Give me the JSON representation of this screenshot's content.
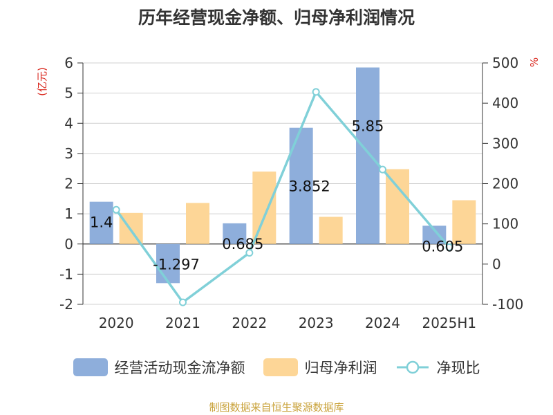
{
  "title": "历年经营现金净额、归母净利润情况",
  "source": "制图数据来自恒生聚源数据库",
  "colors": {
    "cash": "#8eaedb",
    "profit": "#fdd697",
    "ratio": "#80d0d8"
  },
  "chart_data": {
    "type": "bar",
    "categories": [
      "2020",
      "2021",
      "2022",
      "2023",
      "2024",
      "2025H1"
    ],
    "series": [
      {
        "name": "经营活动现金流净额",
        "type": "bar",
        "axis": "left",
        "values": [
          1.4,
          -1.297,
          0.685,
          3.852,
          5.85,
          0.605
        ],
        "labels": [
          "1.4",
          "-1.297",
          "0.685",
          "3.852",
          "5.85",
          "0.605"
        ]
      },
      {
        "name": "归母净利润",
        "type": "bar",
        "axis": "left",
        "values": [
          1.03,
          1.36,
          2.4,
          0.9,
          2.48,
          1.45
        ]
      },
      {
        "name": "净现比",
        "type": "line",
        "axis": "right",
        "values": [
          135,
          -95,
          28,
          428,
          235,
          42
        ]
      }
    ],
    "y_left": {
      "label": "(亿元)",
      "min": -2,
      "max": 6,
      "ticks": [
        "-2",
        "-1",
        "0",
        "1",
        "2",
        "3",
        "4",
        "5",
        "6"
      ]
    },
    "y_right": {
      "label": "%",
      "min": -100,
      "max": 500,
      "ticks": [
        "-100",
        "0",
        "100",
        "200",
        "300",
        "400",
        "500"
      ]
    },
    "grid": true,
    "legend": "bottom"
  }
}
